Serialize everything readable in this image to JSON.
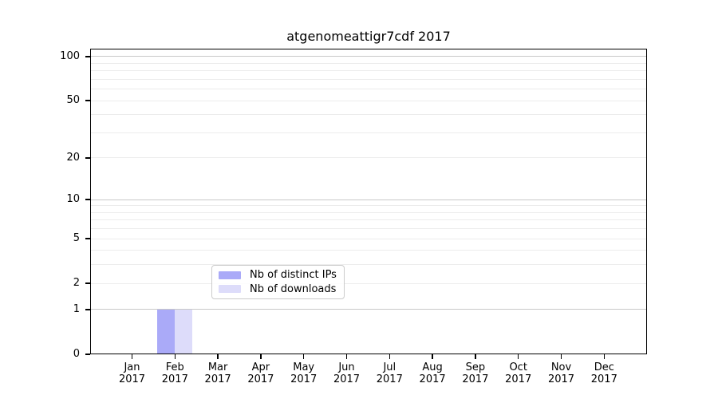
{
  "chart_data": {
    "type": "bar",
    "title": "atgenomeattigr7cdf 2017",
    "categories": [
      "Jan 2017",
      "Feb 2017",
      "Mar 2017",
      "Apr 2017",
      "May 2017",
      "Jun 2017",
      "Jul 2017",
      "Aug 2017",
      "Sep 2017",
      "Oct 2017",
      "Nov 2017",
      "Dec 2017"
    ],
    "months": [
      "Jan",
      "Feb",
      "Mar",
      "Apr",
      "May",
      "Jun",
      "Jul",
      "Aug",
      "Sep",
      "Oct",
      "Nov",
      "Dec"
    ],
    "year": "2017",
    "series": [
      {
        "name": "Nb of distinct IPs",
        "color": "#aaaaf8",
        "values": [
          0,
          1,
          0,
          0,
          0,
          0,
          0,
          0,
          0,
          0,
          0,
          0
        ]
      },
      {
        "name": "Nb of downloads",
        "color": "#dddcfa",
        "values": [
          0,
          1,
          0,
          0,
          0,
          0,
          0,
          0,
          0,
          0,
          0,
          0
        ]
      }
    ],
    "y_axis": {
      "scale": "log1p",
      "tick_values": [
        0,
        1,
        2,
        5,
        10,
        20,
        50,
        100
      ],
      "major_gridlines": [
        1,
        10,
        100
      ],
      "minor_gridlines": [
        2,
        3,
        4,
        5,
        6,
        7,
        8,
        9,
        20,
        30,
        40,
        50,
        60,
        70,
        80,
        90
      ],
      "ylim": [
        0,
        113
      ],
      "grid": true
    },
    "legend": {
      "position": "bottom-center",
      "entries": [
        "Nb of distinct IPs",
        "Nb of downloads"
      ]
    },
    "colors": {
      "bar_distinct_ips": "#aaaaf8",
      "bar_downloads": "#dddcfa",
      "major_grid": "#c8c8c8",
      "minor_grid": "#ececec",
      "axis": "#000000",
      "text": "#000000",
      "legend_border": "#cccccc"
    }
  }
}
